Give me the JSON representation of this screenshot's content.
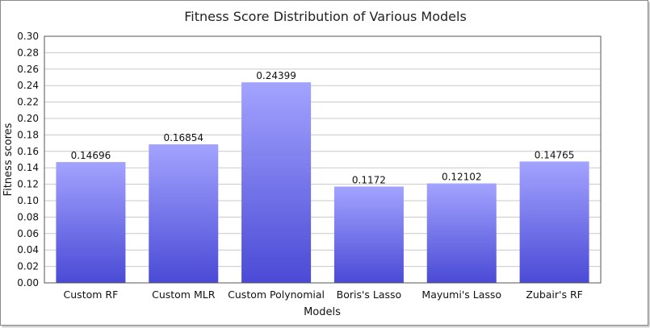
{
  "chart_data": {
    "type": "bar",
    "title": "Fitness Score Distribution of Various Models",
    "xlabel": "Models",
    "ylabel": "Fitness scores",
    "ylim": [
      0,
      0.3
    ],
    "ytick_step": 0.02,
    "ytick_labels": [
      "0.00",
      "0.02",
      "0.04",
      "0.06",
      "0.08",
      "0.10",
      "0.12",
      "0.14",
      "0.16",
      "0.18",
      "0.20",
      "0.22",
      "0.24",
      "0.26",
      "0.28",
      "0.30"
    ],
    "categories": [
      "Custom RF",
      "Custom MLR",
      "Custom Polynomial",
      "Boris's Lasso",
      "Mayumi's Lasso",
      "Zubair's RF"
    ],
    "values": [
      0.14696,
      0.16854,
      0.24399,
      0.1172,
      0.12102,
      0.14765
    ],
    "value_labels": [
      "0.14696",
      "0.16854",
      "0.24399",
      "0.1172",
      "0.12102",
      "0.14765"
    ],
    "grid": true,
    "legend": "none",
    "colors": {
      "bar_top": "#a3a3ff",
      "bar_bottom": "#4a4ad6",
      "grid": "#c8c8c8",
      "axis": "#555555"
    }
  }
}
